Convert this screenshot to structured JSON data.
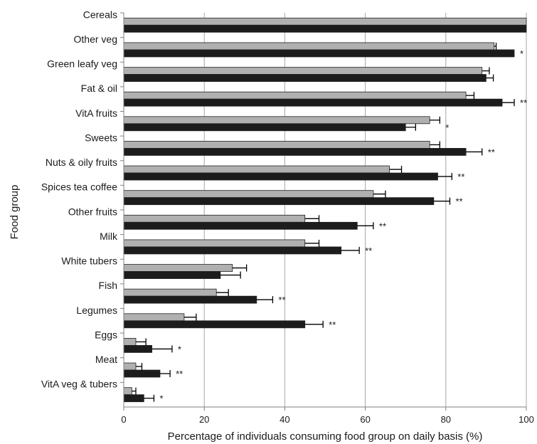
{
  "chart_data": {
    "type": "bar",
    "orientation": "horizontal",
    "xlabel": "Percentage of individuals consuming food group on daily basis (%)",
    "ylabel": "Food group",
    "xlim": [
      0,
      100
    ],
    "xticks": [
      0,
      20,
      40,
      60,
      80,
      100
    ],
    "grid": "vertical",
    "categories": [
      "Cereals",
      "Other veg",
      "Green leafy veg",
      "Fat & oil",
      "VitA fruits",
      "Sweets",
      "Nuts & oily fruits",
      "Spices tea coffee",
      "Other fruits",
      "Milk",
      "White tubers",
      "Fish",
      "Legumes",
      "Eggs",
      "Meat",
      "VitA veg & tubers"
    ],
    "series": [
      {
        "color": "#b0b0b0",
        "values": [
          100,
          92,
          89,
          85,
          76,
          76,
          66,
          62,
          45,
          45,
          27,
          23,
          15,
          3,
          3,
          2
        ],
        "errors": [
          0,
          0.5,
          1.8,
          2,
          2.5,
          2.5,
          3,
          3,
          3.5,
          3.5,
          3.5,
          3,
          3,
          2.5,
          1.5,
          1
        ]
      },
      {
        "color": "#1c1c1c",
        "values": [
          100,
          97,
          90,
          94,
          70,
          85,
          78,
          77,
          58,
          54,
          24,
          33,
          45,
          7,
          9,
          5
        ],
        "errors": [
          0,
          0,
          1.8,
          3,
          2.5,
          4,
          3.5,
          4,
          4,
          4.5,
          5,
          4,
          4.5,
          5,
          2.5,
          2.5
        ]
      }
    ],
    "significance": [
      "",
      "*",
      "",
      "**",
      "*",
      "**",
      "**",
      "**",
      "**",
      "**",
      "",
      "**",
      "**",
      "*",
      "**",
      "*"
    ]
  }
}
